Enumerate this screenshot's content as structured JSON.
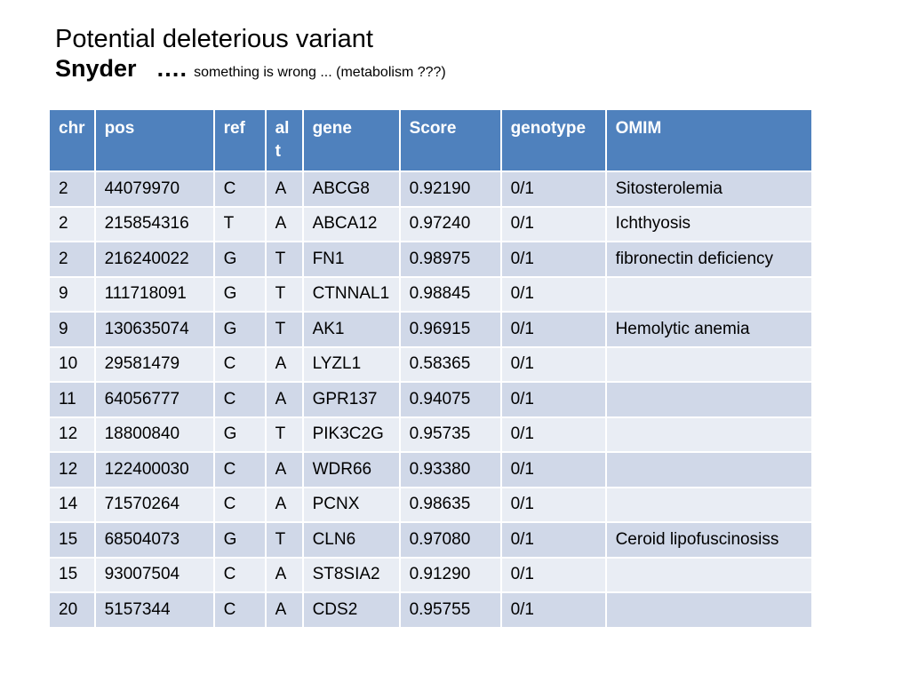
{
  "title": {
    "line1": "Potential deleterious variant",
    "name": "Snyder",
    "dots": "….",
    "note": "something is wrong ...  (metabolism ???)"
  },
  "table": {
    "headers": [
      "chr",
      "pos",
      "ref",
      "alt",
      "gene",
      "Score",
      "genotype",
      "OMIM"
    ],
    "rows": [
      [
        "2",
        "44079970",
        "C",
        "A",
        "ABCG8",
        "0.92190",
        "0/1",
        "Sitosterolemia"
      ],
      [
        "2",
        "215854316",
        "T",
        "A",
        "ABCA12",
        "0.97240",
        "0/1",
        "Ichthyosis"
      ],
      [
        "2",
        "216240022",
        "G",
        "T",
        "FN1",
        "0.98975",
        "0/1",
        "fibronectin deficiency"
      ],
      [
        "9",
        "111718091",
        "G",
        "T",
        "CTNNAL1",
        "0.98845",
        "0/1",
        ""
      ],
      [
        "9",
        "130635074",
        "G",
        "T",
        "AK1",
        "0.96915",
        "0/1",
        "Hemolytic anemia"
      ],
      [
        "10",
        "29581479",
        "C",
        "A",
        "LYZL1",
        "0.58365",
        "0/1",
        ""
      ],
      [
        "11",
        "64056777",
        "C",
        "A",
        "GPR137",
        "0.94075",
        "0/1",
        ""
      ],
      [
        "12",
        "18800840",
        "G",
        "T",
        "PIK3C2G",
        "0.95735",
        "0/1",
        ""
      ],
      [
        "12",
        "122400030",
        "C",
        "A",
        "WDR66",
        "0.93380",
        "0/1",
        ""
      ],
      [
        "14",
        "71570264",
        "C",
        "A",
        "PCNX",
        "0.98635",
        "0/1",
        ""
      ],
      [
        "15",
        "68504073",
        "G",
        "T",
        "CLN6",
        "0.97080",
        "0/1",
        "Ceroid lipofuscinosiss"
      ],
      [
        "15",
        "93007504",
        "C",
        "A",
        "ST8SIA2",
        "0.91290",
        "0/1",
        ""
      ],
      [
        "20",
        "5157344",
        "C",
        "A",
        "CDS2",
        "0.95755",
        "0/1",
        ""
      ]
    ]
  },
  "colors": {
    "header_bg": "#4f81bd",
    "row_odd_bg": "#d0d8e8",
    "row_even_bg": "#e9edf4"
  }
}
